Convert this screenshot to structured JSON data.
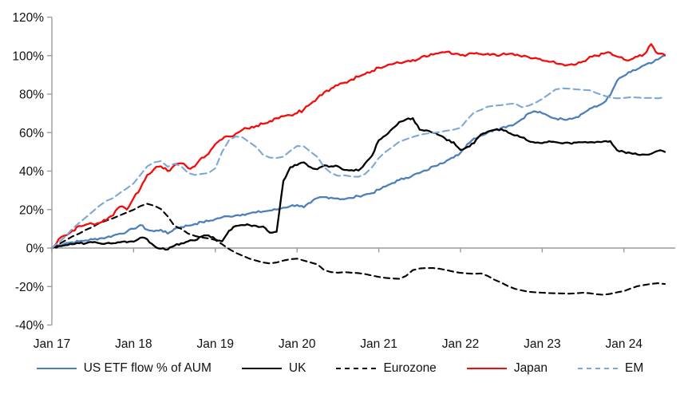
{
  "chart": {
    "title": "",
    "y_axis": {
      "tick_labels": [
        "120%",
        "100%",
        "80%",
        "60%",
        "40%",
        "20%",
        "0%",
        "-20%",
        "-40%"
      ],
      "tick_values": [
        120,
        100,
        80,
        60,
        40,
        20,
        0,
        -20,
        -40
      ],
      "axis_color": "#9b9b9b",
      "label_color": "#111111"
    },
    "x_axis": {
      "tick_labels": [
        "Jan 17",
        "Jan 18",
        "Jan 19",
        "Jan 20",
        "Jan 21",
        "Jan 22",
        "Jan 23",
        "Jan 24"
      ],
      "tick_month_positions": [
        0,
        12,
        24,
        36,
        48,
        60,
        72,
        84
      ]
    }
  },
  "chart_data": {
    "type": "line",
    "title": "",
    "xlabel": "",
    "ylabel": "",
    "ylim": [
      -40,
      120
    ],
    "grid": "zero-line-only",
    "legend_position": "bottom",
    "x_unit": "months since Jan 2017 (0..90, ending ~Jul 2024)",
    "x_tick_positions": [
      0,
      12,
      24,
      36,
      48,
      60,
      72,
      84
    ],
    "x_tick_labels": [
      "Jan 17",
      "Jan 18",
      "Jan 19",
      "Jan 20",
      "Jan 21",
      "Jan 22",
      "Jan 23",
      "Jan 24"
    ],
    "series": [
      {
        "name": "US ETF flow % of AUM",
        "color": "#4d80ba",
        "dash": null,
        "jitter": 0.6,
        "values": [
          0,
          1.5,
          2.5,
          3,
          3.5,
          4,
          4.5,
          5,
          5.5,
          6.5,
          7.5,
          8.5,
          10,
          12,
          9.5,
          8.7,
          9.5,
          7.5,
          10,
          11,
          11.6,
          12.5,
          13.5,
          14,
          15,
          16,
          16.5,
          17,
          17.5,
          18,
          18.5,
          19,
          19.5,
          20,
          21,
          21.8,
          22.4,
          21.2,
          23.5,
          26,
          26.5,
          26.2,
          25.8,
          25.4,
          26,
          27,
          27.8,
          28.5,
          30.3,
          32,
          33.8,
          35.3,
          36.5,
          37.8,
          39,
          40.3,
          42.5,
          44,
          45.5,
          47,
          49.5,
          54,
          57,
          58.5,
          60,
          61.5,
          62.5,
          63.5,
          64.5,
          67,
          70,
          71,
          70,
          68.5,
          67.3,
          67,
          67.3,
          68,
          70,
          72.5,
          73.5,
          75.5,
          79.5,
          87,
          89.5,
          91.5,
          93,
          95,
          96,
          98,
          100
        ]
      },
      {
        "name": "UK",
        "color": "#000000",
        "dash": null,
        "jitter": 0.5,
        "values": [
          0,
          1,
          1.5,
          2,
          2.5,
          2.5,
          3,
          2.5,
          2.5,
          2.5,
          3,
          3,
          3.3,
          5.4,
          4.5,
          1.2,
          -0.3,
          -0.8,
          1.2,
          2.5,
          3.5,
          4,
          6,
          6.6,
          4.5,
          3.5,
          9,
          11.5,
          12,
          12,
          11.5,
          11.2,
          8,
          8.5,
          35,
          42,
          43.1,
          44.5,
          42,
          41,
          43,
          42.5,
          42.5,
          40.6,
          40.5,
          40.3,
          44,
          48,
          56,
          58.5,
          62,
          65.5,
          66.8,
          67.5,
          61.5,
          61.2,
          59.8,
          58.5,
          56,
          55,
          51,
          52.5,
          54.5,
          59,
          60.5,
          61.4,
          61.8,
          60,
          58.5,
          57.5,
          55.6,
          54.7,
          54.5,
          55.5,
          55,
          54.4,
          54.6,
          54.8,
          55,
          55,
          55.2,
          55.4,
          55.6,
          50.8,
          50,
          49.3,
          48.6,
          48.6,
          49,
          50.5,
          50
        ]
      },
      {
        "name": "Eurozone",
        "color": "#000000",
        "dash": [
          7,
          5
        ],
        "jitter": 0,
        "values": [
          0,
          2,
          4,
          6,
          7.5,
          9.5,
          11,
          13,
          14.3,
          15.5,
          17,
          18.5,
          19.9,
          21.8,
          23,
          22,
          20.3,
          16.5,
          11.5,
          10,
          7.5,
          6.3,
          5.5,
          5,
          4.2,
          2,
          -0.5,
          -2.5,
          -4,
          -5.5,
          -6.5,
          -7.5,
          -8,
          -7.5,
          -6.5,
          -5.8,
          -5.5,
          -6.5,
          -7.5,
          -8.5,
          -11.5,
          -12.5,
          -12.8,
          -12.5,
          -12.8,
          -13,
          -13.5,
          -14.3,
          -15,
          -15.5,
          -15.8,
          -16,
          -14.5,
          -11.5,
          -10.6,
          -10.4,
          -10.4,
          -10.8,
          -11.5,
          -12.3,
          -12.9,
          -13.2,
          -13.4,
          -13.2,
          -14.5,
          -16.5,
          -18,
          -19.8,
          -21.2,
          -22,
          -22.7,
          -23,
          -23.2,
          -23.4,
          -23.5,
          -23.6,
          -23.7,
          -23.5,
          -23.2,
          -23.5,
          -24,
          -24.3,
          -23.8,
          -23,
          -22.4,
          -21,
          -19.8,
          -19.2,
          -18.6,
          -18.3,
          -18.7
        ]
      },
      {
        "name": "Japan",
        "color": "#f40b0b",
        "dash": null,
        "jitter": 0.8,
        "values": [
          0,
          4.6,
          6.5,
          9,
          11.5,
          12.2,
          12.5,
          13,
          14.5,
          17,
          21.5,
          20,
          26,
          31,
          38,
          41,
          42.5,
          40,
          43,
          44,
          41.5,
          42.5,
          47,
          49,
          54,
          56.5,
          58,
          59.5,
          61.5,
          62,
          63.5,
          64.5,
          66,
          67.5,
          68.5,
          69,
          70.1,
          72,
          75,
          78,
          81,
          83,
          84.6,
          86,
          87.6,
          89,
          90.5,
          92,
          93.8,
          94.5,
          95.5,
          96.3,
          97,
          97.8,
          98.5,
          99.5,
          100.5,
          101.5,
          102,
          100.8,
          100.2,
          100.5,
          101,
          100.8,
          101,
          100.8,
          100.5,
          100.8,
          100.2,
          99.5,
          99.2,
          98.8,
          97.5,
          96.8,
          96,
          95.5,
          95.3,
          95.5,
          97,
          99.5,
          100,
          101,
          101.5,
          99.5,
          98,
          98,
          99.5,
          100.8,
          106,
          101,
          100.3
        ]
      },
      {
        "name": "EM",
        "color": "#7da7d9",
        "dash": [
          8,
          5
        ],
        "jitter": 0,
        "values": [
          0,
          3,
          6,
          10,
          13,
          16,
          19,
          22,
          24.5,
          26,
          28.7,
          31,
          33.6,
          38,
          42.5,
          44.5,
          45.2,
          42.3,
          43.8,
          42.5,
          39,
          38,
          38.5,
          39,
          41.5,
          50,
          56,
          58,
          57.5,
          55,
          52.5,
          48.5,
          47,
          46.8,
          47.5,
          50.5,
          53,
          52.8,
          50,
          47.3,
          42,
          39,
          37.5,
          37.8,
          37.2,
          37,
          38.5,
          42,
          46.8,
          50,
          52.5,
          55.2,
          56.5,
          57.7,
          58.8,
          59.5,
          59.8,
          60.3,
          61,
          61.5,
          62.5,
          66.8,
          70.5,
          71.8,
          73.5,
          74,
          74.3,
          74.8,
          75.1,
          73.2,
          74,
          75.5,
          77.5,
          80,
          82.5,
          83,
          82.8,
          82.5,
          82.2,
          82,
          80.5,
          79.3,
          78.2,
          77.8,
          78,
          78.4,
          78.2,
          78,
          78,
          77.8,
          78.4
        ]
      }
    ]
  },
  "legend": {
    "items": [
      {
        "label": "US ETF flow % of AUM",
        "swatch": "solid-blue-line"
      },
      {
        "label": "UK",
        "swatch": "solid-black-line"
      },
      {
        "label": "Eurozone",
        "swatch": "dashed-black-line"
      },
      {
        "label": "Japan",
        "swatch": "solid-red-line"
      },
      {
        "label": "EM",
        "swatch": "dashed-blue-line"
      }
    ]
  }
}
